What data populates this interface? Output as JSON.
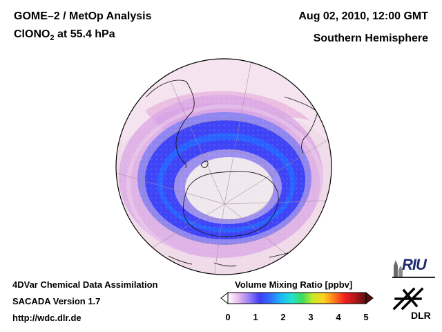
{
  "header": {
    "title_line1": "GOME–2 / MetOp Analysis",
    "title_line2_species": "ClONO",
    "title_line2_subscript": "2",
    "title_line2_rest": " at 55.4 hPa",
    "date": "Aug 02, 2010, 12:00 GMT",
    "region": "Southern Hemisphere"
  },
  "footer": {
    "line1": "4DVar Chemical Data Assimilation",
    "line2": "SACADA Version 1.7",
    "line3": "http://wdc.dlr.de"
  },
  "colorbar": {
    "label": "Volume Mixing Ratio [ppbv]",
    "ticks": [
      "0",
      "1",
      "2",
      "3",
      "4",
      "5"
    ],
    "colors": [
      "#ffffff",
      "#e8b8ef",
      "#9a7ff3",
      "#3f3df5",
      "#2f6fff",
      "#1eb8ff",
      "#21e0d0",
      "#3ddc5a",
      "#c7e82a",
      "#ffd21e",
      "#ff7a1a",
      "#f21e1e",
      "#b01818",
      "#5a1010"
    ]
  },
  "logos": {
    "riu": "RIU",
    "dlr": "DLR"
  }
}
